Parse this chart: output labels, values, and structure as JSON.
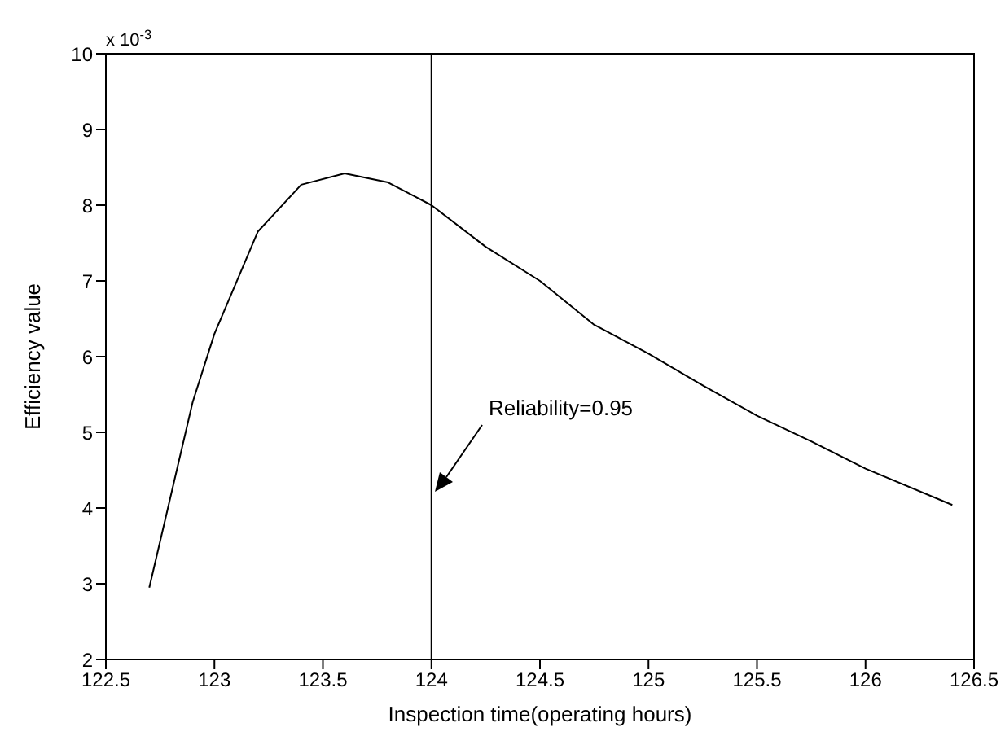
{
  "chart_data": {
    "type": "line",
    "xlabel": "Inspection time(operating hours)",
    "ylabel": "Efficiency value",
    "x": [
      122.7,
      122.9,
      123.0,
      123.2,
      123.4,
      123.6,
      123.8,
      124.0,
      124.25,
      124.5,
      124.75,
      125.0,
      125.25,
      125.5,
      125.75,
      126.0,
      126.4
    ],
    "series": [
      {
        "color": "#000000",
        "values": [
          2.95,
          5.4,
          6.3,
          7.65,
          8.27,
          8.42,
          8.3,
          8.0,
          7.45,
          7.0,
          6.42,
          6.04,
          5.62,
          5.22,
          4.88,
          4.52,
          4.04
        ]
      }
    ],
    "xlim": [
      122.5,
      126.5
    ],
    "xticks": [
      122.5,
      123,
      123.5,
      124,
      124.5,
      125,
      125.5,
      126,
      126.5
    ],
    "ylim": [
      2,
      10
    ],
    "yticks": [
      2,
      3,
      4,
      5,
      6,
      7,
      8,
      9,
      10
    ],
    "ref_lines": [
      {
        "axis": "x",
        "value": 124,
        "color": "#000000"
      }
    ],
    "annotations": [
      "x 10$^{-3}$",
      "Reliability=0.95"
    ],
    "grid": false,
    "legend": false,
    "marker": "none",
    "line_style": "solid"
  }
}
